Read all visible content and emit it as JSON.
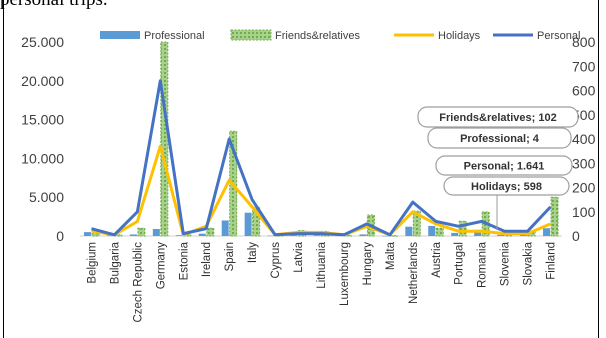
{
  "caption": "personal trips.",
  "chart_data": {
    "type": "bar",
    "categories": [
      "Belgium",
      "Bulgaria",
      "Czech Republic",
      "Germany",
      "Estonia",
      "Ireland",
      "Spain",
      "Italy",
      "Cyprus",
      "Latvia",
      "Lithuania",
      "Luxembourg",
      "Hungary",
      "Malta",
      "Netherlands",
      "Austria",
      "Portugal",
      "Romania",
      "Slovenia",
      "Slovakia",
      "Finland"
    ],
    "left_axis": {
      "ylim": [
        0,
        25000
      ],
      "ticks": [
        "0",
        "5.000",
        "10.000",
        "15.000",
        "20.000",
        "25.000"
      ],
      "tick_values": [
        0,
        5000,
        10000,
        15000,
        20000,
        25000
      ]
    },
    "right_axis": {
      "ylim": [
        0,
        800
      ],
      "ticks": [
        "0",
        "100",
        "200",
        "300",
        "400",
        "500",
        "600",
        "700",
        "800"
      ],
      "tick_values": [
        0,
        100,
        200,
        300,
        400,
        500,
        600,
        700,
        800
      ]
    },
    "series": [
      {
        "name": "Professional",
        "kind": "bar",
        "axis": "left",
        "color": "#5B9BD5",
        "values": [
          500,
          100,
          200,
          900,
          100,
          300,
          2000,
          3000,
          50,
          100,
          100,
          50,
          200,
          20,
          1200,
          1300,
          400,
          800,
          150,
          150,
          1000
        ]
      },
      {
        "name": "Friends&relatives",
        "kind": "bar",
        "axis": "left",
        "color": "#70AD47",
        "pattern": "dashed-outline",
        "values": [
          300,
          150,
          1000,
          25000,
          200,
          1000,
          13500,
          3700,
          100,
          700,
          600,
          100,
          2700,
          50,
          3200,
          1000,
          1900,
          3100,
          400,
          600,
          5000
        ]
      },
      {
        "name": "Holidays",
        "kind": "line",
        "axis": "right",
        "color": "#FFC000",
        "values": [
          20,
          5,
          60,
          370,
          5,
          40,
          230,
          120,
          5,
          15,
          15,
          5,
          40,
          5,
          100,
          50,
          20,
          20,
          10,
          10,
          50
        ]
      },
      {
        "name": "Personal",
        "kind": "line",
        "axis": "right",
        "color": "#4472C4",
        "values": [
          30,
          5,
          100,
          640,
          10,
          30,
          400,
          150,
          5,
          10,
          10,
          5,
          50,
          5,
          140,
          60,
          40,
          60,
          20,
          20,
          120
        ]
      }
    ],
    "callouts": [
      {
        "text": "Friends&relatives; 102"
      },
      {
        "text": "Professional; 4"
      },
      {
        "text": "Personal; 1.641"
      },
      {
        "text": "Holidays; 598"
      }
    ],
    "legend_position": "top",
    "grid": false
  }
}
